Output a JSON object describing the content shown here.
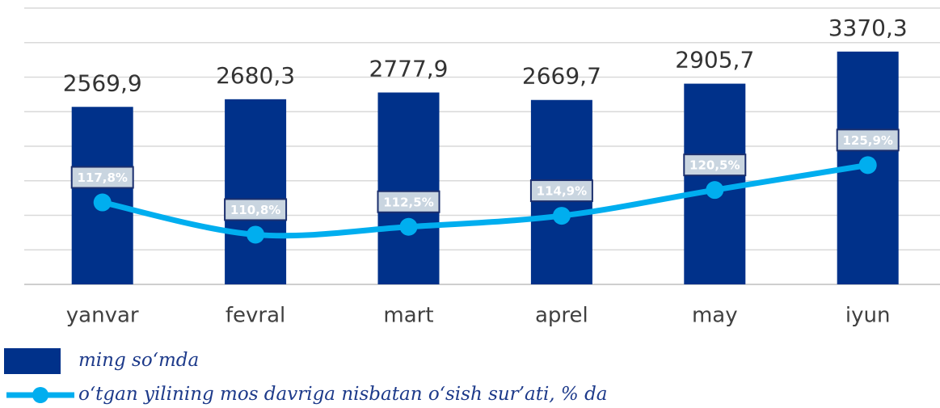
{
  "chart_data": {
    "type": "bar",
    "categories": [
      "yanvar",
      "fevral",
      "mart",
      "aprel",
      "may",
      "iyun"
    ],
    "series": [
      {
        "name": "ming so‘mda",
        "type": "bar",
        "color": "#00318a",
        "values": [
          2569.9,
          2680.3,
          2777.9,
          2669.7,
          2905.7,
          3370.3
        ],
        "value_labels": [
          "2569,9",
          "2680,3",
          "2777,9",
          "2669,7",
          "2905,7",
          "3370,3"
        ]
      },
      {
        "name": "o‘tgan yilining mos davriga nisbatan o‘sish sur’ati, % da",
        "type": "line",
        "axis": "y2",
        "color": "#00aeef",
        "values": [
          117.8,
          110.8,
          112.5,
          114.9,
          120.5,
          125.9
        ],
        "value_labels": [
          "117,8%",
          "110,8%",
          "112,5%",
          "114,9%",
          "120,5%",
          "125,9%"
        ]
      }
    ],
    "ylim": [
      0,
      4000
    ],
    "yticks": [
      0,
      500,
      1000,
      1500,
      2000,
      2500,
      3000,
      3500,
      4000
    ],
    "y2lim": [
      100,
      160
    ],
    "grid": true
  }
}
